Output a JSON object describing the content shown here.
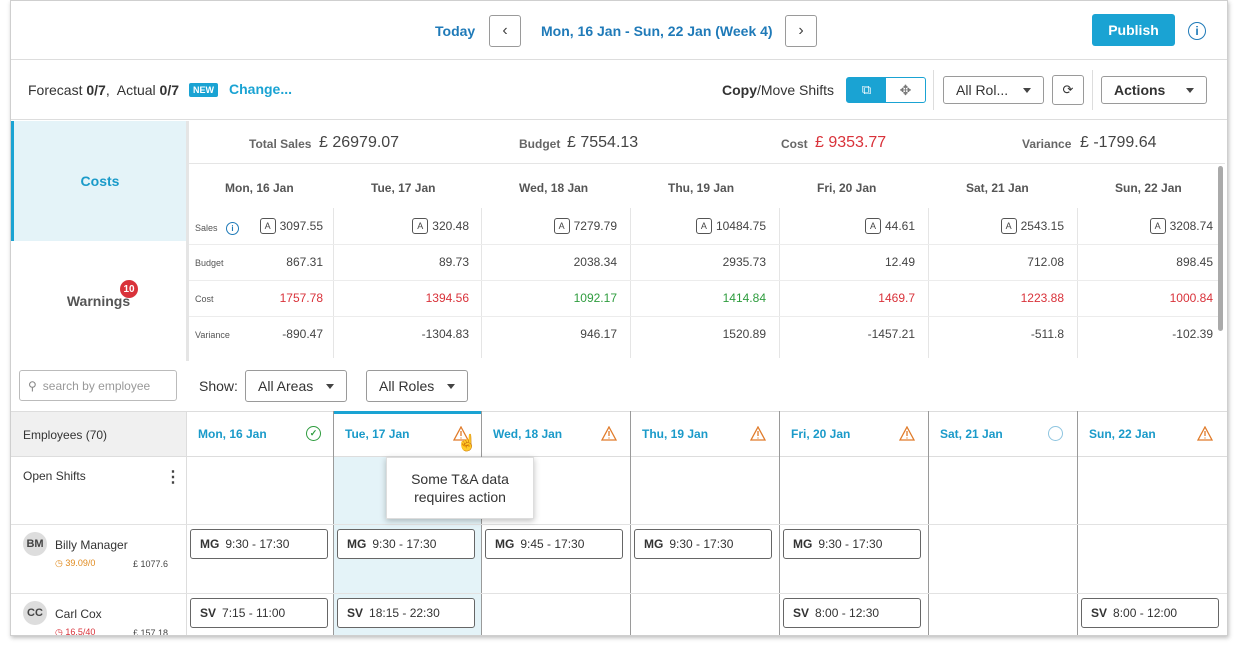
{
  "header": {
    "today": "Today",
    "range": "Mon, 16 Jan - Sun, 22 Jan (Week 4)",
    "publish": "Publish"
  },
  "toolbar": {
    "forecast_label": "Forecast",
    "forecast_value": "0/7",
    "actual_label": "Actual",
    "actual_value": "0/7",
    "new_badge": "NEW",
    "change": "Change...",
    "copy_bold": "Copy",
    "copy_rest": "/Move Shifts",
    "roles_select": "All Rol...",
    "actions": "Actions"
  },
  "tabs": {
    "costs": "Costs",
    "warnings": "Warnings",
    "warnings_count": "10"
  },
  "totals": {
    "total_sales_label": "Total Sales",
    "total_sales": "£ 26979.07",
    "budget_label": "Budget",
    "budget": "£ 7554.13",
    "cost_label": "Cost",
    "cost": "£ 9353.77",
    "variance_label": "Variance",
    "variance": "£ -1799.64"
  },
  "cost_grid": {
    "days": [
      "Mon, 16 Jan",
      "Tue, 17 Jan",
      "Wed, 18 Jan",
      "Thu, 19 Jan",
      "Fri, 20 Jan",
      "Sat, 21 Jan",
      "Sun, 22 Jan"
    ],
    "row_labels": {
      "sales": "Sales",
      "budget": "Budget",
      "cost": "Cost",
      "variance": "Variance"
    },
    "actual_badge": "A",
    "sales": [
      "3097.55",
      "320.48",
      "7279.79",
      "10484.75",
      "44.61",
      "2543.15",
      "3208.74"
    ],
    "budget": [
      "867.31",
      "89.73",
      "2038.34",
      "2935.73",
      "12.49",
      "712.08",
      "898.45"
    ],
    "cost": [
      "1757.78",
      "1394.56",
      "1092.17",
      "1414.84",
      "1469.7",
      "1223.88",
      "1000.84"
    ],
    "cost_status": [
      "over",
      "over",
      "under",
      "under",
      "over",
      "over",
      "over"
    ],
    "variance": [
      "-890.47",
      "-1304.83",
      "946.17",
      "1520.89",
      "-1457.21",
      "-511.8",
      "-102.39"
    ]
  },
  "filters": {
    "search_placeholder": "search by employee",
    "show_label": "Show:",
    "areas": "All Areas",
    "roles": "All Roles"
  },
  "schedule": {
    "employees_header": "Employees (70)",
    "day_headers": [
      "Mon, 16 Jan",
      "Tue, 17 Jan",
      "Wed, 18 Jan",
      "Thu, 19 Jan",
      "Fri, 20 Jan",
      "Sat, 21 Jan",
      "Sun, 22 Jan"
    ],
    "day_status_icons": [
      "check-icon",
      "warning-icon",
      "warning-icon",
      "warning-icon",
      "warning-icon",
      "clock-icon",
      "warning-icon"
    ],
    "open_shifts": "Open Shifts",
    "tooltip": "Some T&A data requires action",
    "employees": [
      {
        "initials": "BM",
        "name": "Billy Manager",
        "hours": "39.09/0",
        "cost": "£ 1077.6",
        "shifts": [
          {
            "day": 0,
            "role": "MG",
            "time": "9:30 - 17:30"
          },
          {
            "day": 1,
            "role": "MG",
            "time": "9:30 - 17:30"
          },
          {
            "day": 2,
            "role": "MG",
            "time": "9:45 - 17:30"
          },
          {
            "day": 3,
            "role": "MG",
            "time": "9:30 - 17:30"
          },
          {
            "day": 4,
            "role": "MG",
            "time": "9:30 - 17:30"
          }
        ]
      },
      {
        "initials": "CC",
        "name": "Carl Cox",
        "hours": "16.5/40",
        "cost": "£ 157.18",
        "shifts": [
          {
            "day": 0,
            "role": "SV",
            "time": "7:15 - 11:00"
          },
          {
            "day": 1,
            "role": "SV",
            "time": "18:15 - 22:30"
          },
          {
            "day": 4,
            "role": "SV",
            "time": "8:00 - 12:30"
          },
          {
            "day": 6,
            "role": "SV",
            "time": "8:00 - 12:00"
          }
        ]
      }
    ]
  },
  "colors": {
    "accent": "#1aa3d3",
    "link": "#1f7ab8",
    "over": "#d9323a",
    "under": "#2e9c3e",
    "warning": "#e07b2a"
  }
}
